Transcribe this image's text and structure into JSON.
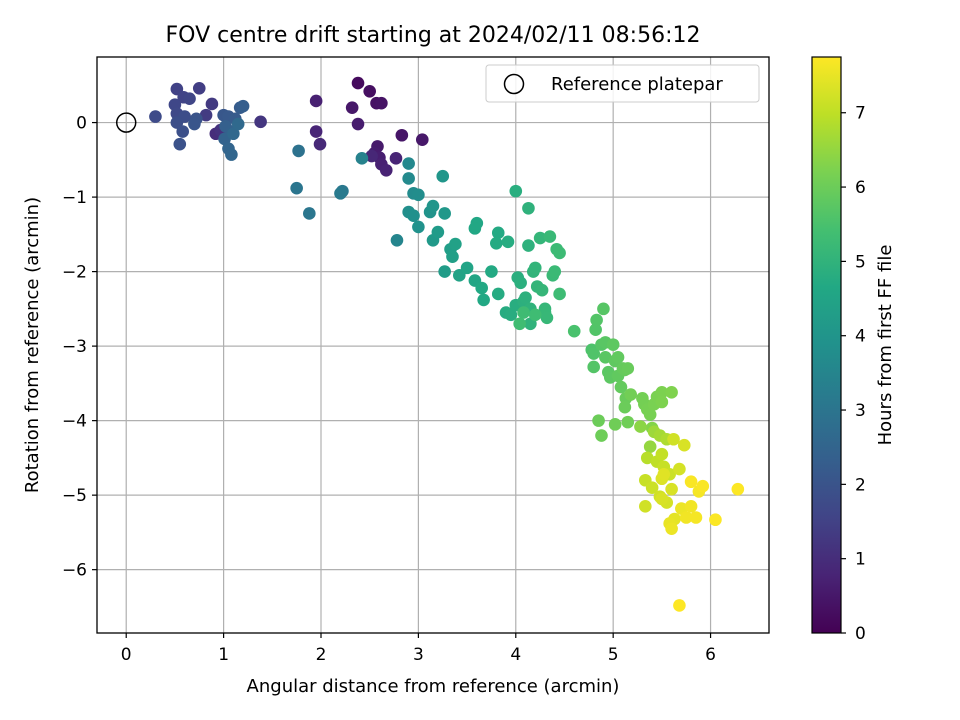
{
  "chart_data": {
    "type": "scatter",
    "title": "FOV centre drift starting at 2024/02/11 08:56:12",
    "xlabel": "Angular distance from reference (arcmin)",
    "ylabel": "Rotation from reference (arcmin)",
    "xlim": [
      -0.3,
      6.6
    ],
    "ylim": [
      -6.85,
      0.88
    ],
    "xticks": [
      0,
      1,
      2,
      3,
      4,
      5,
      6
    ],
    "yticks": [
      0,
      -1,
      -2,
      -3,
      -4,
      -5,
      -6
    ],
    "grid": true,
    "legend": {
      "placement": "top-right",
      "entries": [
        "Reference platepar"
      ]
    },
    "reference_point": {
      "x": 0,
      "y": 0
    },
    "colorbar": {
      "label": "Hours from first FF file",
      "colormap": "viridis",
      "range": [
        0,
        7.75
      ],
      "ticks": [
        0,
        1,
        2,
        3,
        4,
        5,
        6,
        7
      ]
    },
    "points": [
      [
        2.38,
        0.53,
        0.2
      ],
      [
        2.5,
        0.42,
        0.3
      ],
      [
        2.57,
        0.26,
        0.35
      ],
      [
        2.62,
        0.26,
        0.4
      ],
      [
        2.32,
        0.2,
        0.5
      ],
      [
        2.38,
        -0.02,
        0.6
      ],
      [
        1.95,
        0.29,
        0.7
      ],
      [
        1.95,
        -0.12,
        0.8
      ],
      [
        1.99,
        -0.29,
        0.9
      ],
      [
        2.83,
        -0.17,
        0.45
      ],
      [
        3.04,
        -0.23,
        0.5
      ],
      [
        2.58,
        -0.32,
        0.55
      ],
      [
        2.55,
        -0.41,
        0.6
      ],
      [
        2.6,
        -0.47,
        0.65
      ],
      [
        2.62,
        -0.56,
        0.7
      ],
      [
        2.67,
        -0.64,
        0.75
      ],
      [
        2.77,
        -0.48,
        0.8
      ],
      [
        2.52,
        -0.45,
        0.85
      ],
      [
        0.92,
        -0.15,
        1.0
      ],
      [
        0.97,
        -0.1,
        1.1
      ],
      [
        1.38,
        0.01,
        1.2
      ],
      [
        0.88,
        0.25,
        1.3
      ],
      [
        0.82,
        0.1,
        1.35
      ],
      [
        0.75,
        0.46,
        1.4
      ],
      [
        0.52,
        0.45,
        1.5
      ],
      [
        0.59,
        0.34,
        1.55
      ],
      [
        0.65,
        0.32,
        1.6
      ],
      [
        0.5,
        0.24,
        1.65
      ],
      [
        0.52,
        0.12,
        1.7
      ],
      [
        0.3,
        0.08,
        1.75
      ],
      [
        0.6,
        0.08,
        1.8
      ],
      [
        0.52,
        0.0,
        1.85
      ],
      [
        0.58,
        -0.12,
        1.9
      ],
      [
        0.55,
        -0.29,
        1.95
      ],
      [
        0.72,
        0.05,
        2.0
      ],
      [
        0.7,
        -0.02,
        2.05
      ],
      [
        1.0,
        0.1,
        2.1
      ],
      [
        1.05,
        0.08,
        2.15
      ],
      [
        1.12,
        0.05,
        2.2
      ],
      [
        1.17,
        0.2,
        2.25
      ],
      [
        1.2,
        0.22,
        2.3
      ],
      [
        1.02,
        -0.05,
        2.35
      ],
      [
        1.08,
        -0.12,
        2.4
      ],
      [
        1.01,
        -0.22,
        2.45
      ],
      [
        1.05,
        -0.35,
        2.5
      ],
      [
        1.08,
        -0.43,
        2.55
      ],
      [
        1.1,
        -0.15,
        2.6
      ],
      [
        1.15,
        -0.02,
        2.65
      ],
      [
        1.77,
        -0.38,
        2.9
      ],
      [
        1.75,
        -0.88,
        3.0
      ],
      [
        1.88,
        -1.22,
        3.05
      ],
      [
        2.22,
        -0.92,
        3.1
      ],
      [
        2.2,
        -0.95,
        3.15
      ],
      [
        2.42,
        -0.48,
        3.4
      ],
      [
        2.78,
        -1.58,
        3.5
      ],
      [
        2.9,
        -0.55,
        3.6
      ],
      [
        2.9,
        -0.75,
        3.65
      ],
      [
        2.95,
        -0.95,
        3.7
      ],
      [
        3.0,
        -0.97,
        3.75
      ],
      [
        2.9,
        -1.2,
        3.8
      ],
      [
        2.95,
        -1.25,
        3.85
      ],
      [
        3.0,
        -1.4,
        3.9
      ],
      [
        3.12,
        -1.2,
        3.95
      ],
      [
        3.15,
        -1.12,
        4.0
      ],
      [
        3.25,
        -0.72,
        4.05
      ],
      [
        3.27,
        -1.22,
        4.1
      ],
      [
        3.15,
        -1.58,
        4.15
      ],
      [
        3.2,
        -1.47,
        4.2
      ],
      [
        3.27,
        -2.0,
        4.25
      ],
      [
        3.33,
        -1.7,
        4.3
      ],
      [
        3.35,
        -1.8,
        4.35
      ],
      [
        3.38,
        -1.63,
        4.4
      ],
      [
        3.42,
        -2.05,
        4.45
      ],
      [
        3.5,
        -1.95,
        4.5
      ],
      [
        3.58,
        -2.12,
        4.55
      ],
      [
        3.6,
        -1.35,
        4.6
      ],
      [
        3.58,
        -1.42,
        4.62
      ],
      [
        3.65,
        -2.22,
        4.64
      ],
      [
        3.67,
        -2.38,
        4.66
      ],
      [
        3.75,
        -2.0,
        4.68
      ],
      [
        3.82,
        -1.48,
        4.7
      ],
      [
        3.8,
        -1.62,
        4.72
      ],
      [
        3.82,
        -2.3,
        4.74
      ],
      [
        3.9,
        -2.55,
        4.76
      ],
      [
        3.92,
        -1.6,
        4.78
      ],
      [
        3.95,
        -2.58,
        4.8
      ],
      [
        4.0,
        -2.45,
        4.82
      ],
      [
        4.0,
        -0.92,
        4.84
      ],
      [
        4.02,
        -2.08,
        4.86
      ],
      [
        4.05,
        -2.15,
        4.88
      ],
      [
        4.08,
        -2.4,
        4.9
      ],
      [
        4.1,
        -2.35,
        4.92
      ],
      [
        4.13,
        -1.65,
        4.94
      ],
      [
        4.13,
        -1.15,
        4.96
      ],
      [
        4.15,
        -2.5,
        4.98
      ],
      [
        4.15,
        -2.7,
        5.0
      ],
      [
        4.18,
        -2.0,
        5.02
      ],
      [
        4.2,
        -1.95,
        5.04
      ],
      [
        4.22,
        -2.2,
        5.06
      ],
      [
        4.25,
        -1.55,
        5.08
      ],
      [
        4.27,
        -2.25,
        5.1
      ],
      [
        4.3,
        -2.5,
        5.12
      ],
      [
        4.3,
        -2.55,
        5.14
      ],
      [
        4.32,
        -2.62,
        5.16
      ],
      [
        4.35,
        -1.53,
        5.18
      ],
      [
        4.38,
        -2.05,
        5.2
      ],
      [
        4.4,
        -2.0,
        5.22
      ],
      [
        4.42,
        -1.7,
        5.24
      ],
      [
        4.45,
        -1.75,
        5.26
      ],
      [
        4.45,
        -2.3,
        5.28
      ],
      [
        4.08,
        -2.55,
        5.3
      ],
      [
        4.2,
        -2.58,
        5.32
      ],
      [
        4.04,
        -2.7,
        5.34
      ],
      [
        4.6,
        -2.8,
        5.5
      ],
      [
        4.78,
        -3.05,
        5.55
      ],
      [
        4.8,
        -3.1,
        5.6
      ],
      [
        4.82,
        -2.78,
        5.62
      ],
      [
        4.83,
        -2.65,
        5.64
      ],
      [
        4.8,
        -3.28,
        5.66
      ],
      [
        4.88,
        -2.98,
        5.68
      ],
      [
        4.9,
        -2.5,
        5.7
      ],
      [
        4.92,
        -2.95,
        5.72
      ],
      [
        4.92,
        -3.15,
        5.74
      ],
      [
        4.95,
        -3.35,
        5.76
      ],
      [
        4.97,
        -3.42,
        5.78
      ],
      [
        5.0,
        -2.98,
        5.8
      ],
      [
        5.02,
        -3.2,
        5.82
      ],
      [
        5.05,
        -3.4,
        5.84
      ],
      [
        5.05,
        -3.15,
        5.86
      ],
      [
        5.08,
        -3.55,
        5.88
      ],
      [
        5.1,
        -3.3,
        5.9
      ],
      [
        5.12,
        -3.32,
        5.92
      ],
      [
        5.15,
        -3.3,
        5.94
      ],
      [
        5.13,
        -3.7,
        5.96
      ],
      [
        5.12,
        -3.82,
        5.98
      ],
      [
        4.85,
        -4.0,
        6.0
      ],
      [
        4.88,
        -4.2,
        6.02
      ],
      [
        5.02,
        -4.05,
        6.04
      ],
      [
        5.15,
        -4.02,
        6.06
      ],
      [
        5.18,
        -3.65,
        6.08
      ],
      [
        5.3,
        -3.7,
        6.1
      ],
      [
        5.32,
        -3.78,
        6.12
      ],
      [
        5.35,
        -3.85,
        6.14
      ],
      [
        5.38,
        -3.92,
        6.16
      ],
      [
        5.42,
        -3.78,
        6.18
      ],
      [
        5.45,
        -3.68,
        6.2
      ],
      [
        5.5,
        -3.62,
        6.22
      ],
      [
        5.5,
        -3.75,
        6.24
      ],
      [
        5.6,
        -3.62,
        6.26
      ],
      [
        5.4,
        -4.1,
        6.3
      ],
      [
        5.28,
        -4.08,
        6.4
      ],
      [
        5.38,
        -4.35,
        6.5
      ],
      [
        5.42,
        -4.15,
        6.6
      ],
      [
        5.48,
        -4.2,
        6.7
      ],
      [
        5.55,
        -4.25,
        6.8
      ],
      [
        5.35,
        -4.5,
        6.9
      ],
      [
        5.45,
        -4.55,
        7.0
      ],
      [
        5.5,
        -4.45,
        7.05
      ],
      [
        5.52,
        -4.62,
        7.1
      ],
      [
        5.58,
        -4.72,
        7.15
      ],
      [
        5.62,
        -4.25,
        7.2
      ],
      [
        5.68,
        -4.65,
        7.25
      ],
      [
        5.73,
        -4.33,
        7.3
      ],
      [
        5.33,
        -4.8,
        7.1
      ],
      [
        5.4,
        -4.9,
        7.15
      ],
      [
        5.48,
        -5.02,
        7.2
      ],
      [
        5.55,
        -5.1,
        7.25
      ],
      [
        5.6,
        -4.92,
        7.3
      ],
      [
        5.5,
        -4.78,
        7.35
      ],
      [
        5.52,
        -4.72,
        7.4
      ],
      [
        5.63,
        -5.32,
        7.45
      ],
      [
        5.58,
        -5.38,
        7.5
      ],
      [
        5.6,
        -5.45,
        7.55
      ],
      [
        5.7,
        -5.18,
        7.55
      ],
      [
        5.75,
        -5.3,
        7.6
      ],
      [
        5.8,
        -5.15,
        7.6
      ],
      [
        5.85,
        -5.3,
        7.65
      ],
      [
        5.88,
        -4.95,
        7.65
      ],
      [
        5.92,
        -4.88,
        7.7
      ],
      [
        5.8,
        -4.82,
        7.7
      ],
      [
        6.05,
        -5.33,
        7.72
      ],
      [
        6.28,
        -4.92,
        7.74
      ],
      [
        5.68,
        -6.48,
        7.75
      ],
      [
        5.33,
        -5.15,
        7.2
      ],
      [
        5.5,
        -5.05,
        7.3
      ]
    ]
  }
}
